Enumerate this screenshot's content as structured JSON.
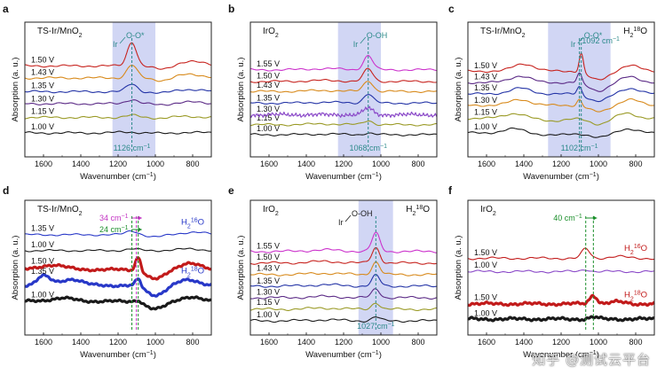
{
  "figure": {
    "watermark": "知乎 @测试云平台",
    "colors": {
      "black": "#1a1a1a",
      "olive": "#9a9a26",
      "purple": "#5b2a86",
      "blue": "#2333a6",
      "orange": "#d88a1c",
      "red": "#c7231e",
      "magenta": "#cc33cc",
      "violet": "#8a48c8",
      "dred": "#c21b1b",
      "dblue": "#2838c8",
      "band": "#c9cff2",
      "teal": "#2d8a8a",
      "green": "#1b8f2b",
      "pink": "#c332c3"
    }
  },
  "chart_data": [
    {
      "id": "a",
      "panel_label": "a",
      "type": "line",
      "title": "TS-Ir/MnO2",
      "xlabel": "Wavenumber (cm-1)",
      "ylabel": "Absorption (a. u.)",
      "xlim": [
        1700,
        700
      ],
      "x_ticks": [
        "1600",
        "1400",
        "1200",
        "1000",
        "800"
      ],
      "band": [
        1230,
        1000
      ],
      "vline": {
        "x": 1126,
        "color": "teal",
        "label": "1126 cm-1"
      },
      "annotation": {
        "text": "Ir—O-O*",
        "x": 1200,
        "color": "teal"
      },
      "series": [
        {
          "name": "1.00 V",
          "color": "black",
          "offset": 0.0,
          "feats": [
            [
              1150,
              0.05,
              80,
              0.6
            ],
            [
              960,
              -0.03,
              70,
              0.7
            ],
            [
              820,
              0.03,
              90,
              1.3
            ]
          ]
        },
        {
          "name": "1.15 V",
          "color": "olive",
          "offset": 0.9,
          "feats": [
            [
              1126,
              0.12,
              50,
              0.8
            ],
            [
              960,
              -0.05,
              70,
              0.9
            ],
            [
              840,
              0.06,
              110,
              1.7
            ]
          ]
        },
        {
          "name": "1.30 V",
          "color": "purple",
          "offset": 1.7,
          "feats": [
            [
              1126,
              0.25,
              45,
              1.0
            ],
            [
              960,
              -0.09,
              70,
              1.1
            ],
            [
              840,
              0.1,
              110,
              1.9
            ]
          ]
        },
        {
          "name": "1.35 V",
          "color": "blue",
          "offset": 2.4,
          "feats": [
            [
              1126,
              0.45,
              40,
              1.2
            ],
            [
              960,
              -0.12,
              70,
              1.3
            ],
            [
              840,
              0.14,
              110,
              2.1
            ]
          ]
        },
        {
          "name": "1.43 V",
          "color": "orange",
          "offset": 3.2,
          "feats": [
            [
              1126,
              0.75,
              38,
              1.4
            ],
            [
              960,
              -0.18,
              70,
              1.5
            ],
            [
              820,
              0.2,
              120,
              2.3
            ]
          ]
        },
        {
          "name": "1.50 V",
          "color": "red",
          "offset": 3.9,
          "feats": [
            [
              1126,
              1.4,
              35,
              1.6
            ],
            [
              960,
              -0.25,
              70,
              1.7
            ],
            [
              820,
              0.25,
              120,
              2.5
            ]
          ]
        }
      ]
    },
    {
      "id": "b",
      "panel_label": "b",
      "type": "line",
      "title": "IrO2",
      "xlabel": "Wavenumber (cm-1)",
      "ylabel": "Absorption (a. u.)",
      "xlim": [
        1700,
        700
      ],
      "x_ticks": [
        "1600",
        "1400",
        "1200",
        "1000",
        "800"
      ],
      "band": [
        1230,
        1000
      ],
      "vline": {
        "x": 1068,
        "color": "teal",
        "label": "1068 cm-1"
      },
      "annotation": {
        "text": "Ir—O-OH",
        "x": 1120,
        "color": "teal"
      },
      "series": [
        {
          "name": "1.00 V",
          "color": "black",
          "offset": 0.0,
          "feats": [
            [
              1068,
              0.1,
              35,
              0.4
            ],
            [
              1300,
              0.04,
              120,
              1.1
            ]
          ]
        },
        {
          "name": "1.15 V",
          "color": "olive",
          "offset": 0.6,
          "feats": [
            [
              1068,
              0.25,
              35,
              0.6
            ],
            [
              1300,
              0.05,
              120,
              1.3
            ]
          ]
        },
        {
          "name": "1.30 V",
          "color": "violet",
          "offset": 1.2,
          "noisy": true,
          "feats": [
            [
              1068,
              0.4,
              35,
              0.8
            ]
          ]
        },
        {
          "name": "1.35 V",
          "color": "blue",
          "offset": 1.9,
          "feats": [
            [
              1068,
              0.55,
              35,
              1.0
            ],
            [
              1300,
              0.05,
              120,
              1.7
            ]
          ]
        },
        {
          "name": "1.43 V",
          "color": "orange",
          "offset": 2.6,
          "feats": [
            [
              1068,
              0.65,
              35,
              1.2
            ],
            [
              1300,
              0.06,
              120,
              1.9
            ]
          ]
        },
        {
          "name": "1.50 V",
          "color": "red",
          "offset": 3.2,
          "feats": [
            [
              1068,
              0.75,
              35,
              1.4
            ],
            [
              1300,
              0.06,
              120,
              2.1
            ]
          ]
        },
        {
          "name": "1.55 V",
          "color": "magenta",
          "offset": 3.9,
          "feats": [
            [
              1068,
              0.85,
              35,
              1.6
            ],
            [
              1300,
              0.07,
              120,
              2.3
            ]
          ]
        }
      ]
    },
    {
      "id": "c",
      "panel_label": "c",
      "type": "line",
      "title": "TS-Ir/MnO2",
      "title_right": "H218O",
      "xlabel": "Wavenumber (cm-1)",
      "ylabel": "Absorption (a. u.)",
      "xlim": [
        1700,
        700
      ],
      "x_ticks": [
        "1600",
        "1400",
        "1200",
        "1000",
        "800"
      ],
      "band": [
        1270,
        935
      ],
      "vline": {
        "x": 1102,
        "color": "teal",
        "label": "1102 cm-1"
      },
      "vline2": {
        "x": 1092,
        "color": "teal",
        "label": "1092 cm-1"
      },
      "annotation": {
        "text": "Ir—O-O*",
        "x": 1120,
        "color": "teal"
      },
      "series": [
        {
          "name": "1.00 V",
          "color": "black",
          "offset": 0.0,
          "feats": [
            [
              1450,
              0.25,
              80,
              0.6
            ],
            [
              1250,
              -0.15,
              100,
              1.2
            ],
            [
              1000,
              -0.3,
              70,
              0.8
            ],
            [
              850,
              0.25,
              70,
              1.4
            ]
          ]
        },
        {
          "name": "1.15 V",
          "color": "olive",
          "offset": 0.9,
          "feats": [
            [
              1450,
              0.3,
              80,
              0.8
            ],
            [
              1250,
              -0.15,
              100,
              1.4
            ],
            [
              1000,
              -0.35,
              70,
              1.0
            ],
            [
              850,
              0.3,
              70,
              1.6
            ]
          ]
        },
        {
          "name": "1.30 V",
          "color": "orange",
          "offset": 1.7,
          "feats": [
            [
              1420,
              0.35,
              80,
              1.0
            ],
            [
              1102,
              0.4,
              18,
              0.3
            ],
            [
              1000,
              -0.4,
              70,
              1.2
            ],
            [
              830,
              0.35,
              70,
              1.8
            ]
          ]
        },
        {
          "name": "1.35 V",
          "color": "blue",
          "offset": 2.4,
          "feats": [
            [
              1420,
              0.35,
              80,
              1.2
            ],
            [
              1102,
              0.5,
              18,
              0.3
            ],
            [
              1000,
              -0.45,
              70,
              1.4
            ],
            [
              830,
              0.35,
              70,
              2.0
            ]
          ]
        },
        {
          "name": "1.43 V",
          "color": "purple",
          "offset": 3.1,
          "feats": [
            [
              1420,
              0.4,
              80,
              1.4
            ],
            [
              1102,
              0.6,
              18,
              0.3
            ],
            [
              1000,
              -0.5,
              70,
              1.6
            ],
            [
              830,
              0.35,
              70,
              2.2
            ]
          ]
        },
        {
          "name": "1.50 V",
          "color": "red",
          "offset": 3.8,
          "feats": [
            [
              1400,
              0.45,
              80,
              1.6
            ],
            [
              1092,
              1.2,
              16,
              0.3
            ],
            [
              1000,
              -0.55,
              70,
              1.8
            ],
            [
              830,
              0.35,
              70,
              2.4
            ]
          ]
        }
      ]
    },
    {
      "id": "d",
      "panel_label": "d",
      "type": "line",
      "title": "TS-Ir/MnO2",
      "xlabel": "Wavenumber (cm-1)",
      "ylabel": "Absorption (a. u.)",
      "xlim": [
        1700,
        700
      ],
      "x_ticks": [
        "1600",
        "1400",
        "1200",
        "1000",
        "800"
      ],
      "vlines": [
        {
          "x": 1126,
          "color": "green"
        },
        {
          "x": 1102,
          "color": "pink"
        },
        {
          "x": 1092,
          "color": "green"
        }
      ],
      "shift_labels": [
        {
          "text": "34 cm-1",
          "color": "pink",
          "row": 0
        },
        {
          "text": "24 cm-1",
          "color": "green",
          "row": 1
        }
      ],
      "iso_labels": [
        {
          "text": "H216O",
          "series": 1
        },
        {
          "text": "H218O",
          "series": 3
        }
      ],
      "series": [
        {
          "name": "1.00 V",
          "color": "black",
          "offset": 3.2,
          "feats": [
            [
              1126,
              0.1,
              50,
              0.3
            ],
            [
              820,
              0.1,
              100,
              1.0
            ]
          ]
        },
        {
          "name": "1.35 V",
          "color": "dblue",
          "offset": 4.2,
          "feats": [
            [
              1126,
              0.25,
              45,
              0.5
            ],
            [
              1000,
              -0.15,
              60,
              0.9
            ],
            [
              800,
              0.15,
              100,
              1.2
            ]
          ]
        },
        {
          "name": "1.00 V",
          "color": "black",
          "offset": 0.0,
          "bold": true,
          "feats": [
            [
              1500,
              0.2,
              90,
              0.6
            ],
            [
              1092,
              0.15,
              25,
              0.3
            ],
            [
              1000,
              -0.5,
              70,
              0.8
            ],
            [
              820,
              0.25,
              80,
              1.3
            ]
          ]
        },
        {
          "name": "1.35 V",
          "color": "dblue",
          "offset": 1.0,
          "bold": true,
          "feats": [
            [
              1600,
              0.6,
              50,
              0.4
            ],
            [
              1450,
              0.4,
              80,
              0.9
            ],
            [
              1092,
              0.5,
              20,
              0.3
            ],
            [
              1000,
              -0.6,
              70,
              1.0
            ],
            [
              820,
              0.35,
              80,
              1.5
            ]
          ]
        },
        {
          "name": "1.50 V",
          "color": "dred",
          "offset": 2.0,
          "bold": true,
          "feats": [
            [
              1550,
              0.3,
              90,
              0.7
            ],
            [
              1092,
              0.9,
              20,
              0.3
            ],
            [
              1000,
              -0.6,
              70,
              1.1
            ],
            [
              820,
              0.4,
              80,
              1.7
            ]
          ]
        }
      ]
    },
    {
      "id": "e",
      "panel_label": "e",
      "type": "line",
      "title": "IrO2",
      "title_right": "H218O",
      "xlabel": "Wavenumber (cm-1)",
      "ylabel": "Absorption (a. u.)",
      "xlim": [
        1700,
        700
      ],
      "x_ticks": [
        "1600",
        "1400",
        "1200",
        "1000",
        "800"
      ],
      "band": [
        1120,
        935
      ],
      "vline": {
        "x": 1027,
        "color": "teal",
        "label": "1027 cm-1"
      },
      "annotation": {
        "text": "Ir—O-OH",
        "x": 1200,
        "color": "black"
      },
      "series": [
        {
          "name": "1.00 V",
          "color": "black",
          "offset": 0.0,
          "feats": [
            [
              1027,
              0.2,
              30,
              0.4
            ],
            [
              1300,
              0.05,
              120,
              1.1
            ]
          ]
        },
        {
          "name": "1.15 V",
          "color": "olive",
          "offset": 0.6,
          "feats": [
            [
              1027,
              0.35,
              30,
              0.6
            ],
            [
              1300,
              0.06,
              120,
              1.3
            ]
          ]
        },
        {
          "name": "1.30 V",
          "color": "purple",
          "offset": 1.2,
          "feats": [
            [
              1027,
              0.45,
              30,
              0.8
            ],
            [
              1300,
              0.06,
              120,
              1.5
            ]
          ]
        },
        {
          "name": "1.35 V",
          "color": "blue",
          "offset": 1.8,
          "feats": [
            [
              1027,
              0.55,
              30,
              1.0
            ],
            [
              1300,
              0.07,
              120,
              1.7
            ]
          ]
        },
        {
          "name": "1.43 V",
          "color": "orange",
          "offset": 2.4,
          "feats": [
            [
              1027,
              0.65,
              30,
              1.2
            ],
            [
              1300,
              0.07,
              120,
              1.9
            ]
          ]
        },
        {
          "name": "1.50 V",
          "color": "red",
          "offset": 3.0,
          "feats": [
            [
              1027,
              0.8,
              30,
              1.4
            ],
            [
              1300,
              0.08,
              120,
              2.1
            ]
          ]
        },
        {
          "name": "1.55 V",
          "color": "magenta",
          "offset": 3.6,
          "feats": [
            [
              1027,
              0.95,
              30,
              1.6
            ],
            [
              1300,
              0.08,
              120,
              2.3
            ]
          ]
        }
      ]
    },
    {
      "id": "f",
      "panel_label": "f",
      "type": "line",
      "title": "IrO2",
      "xlabel": "Wavenumber (cm-1)",
      "ylabel": "Absorption (a. u.)",
      "xlim": [
        1700,
        700
      ],
      "x_ticks": [
        "1600",
        "1400",
        "1200",
        "1000",
        "800"
      ],
      "vlines": [
        {
          "x": 1068,
          "color": "green"
        },
        {
          "x": 1027,
          "color": "green"
        }
      ],
      "shift_labels": [
        {
          "text": "40 cm-1",
          "color": "green",
          "row": 0
        }
      ],
      "iso_labels": [
        {
          "text": "H216O",
          "series": 3
        },
        {
          "text": "H218O",
          "series": 1
        }
      ],
      "series": [
        {
          "name": "1.00 V",
          "color": "black",
          "offset": 0.0,
          "bold": true,
          "feats": [
            [
              1027,
              0.1,
              30,
              0.3
            ]
          ]
        },
        {
          "name": "1.50 V",
          "color": "dred",
          "offset": 0.8,
          "bold": true,
          "feats": [
            [
              1027,
              0.45,
              28,
              0.3
            ],
            [
              900,
              0.1,
              60,
              1.1
            ]
          ]
        },
        {
          "name": "1.00 V",
          "color": "violet",
          "offset": 2.5,
          "feats": [
            [
              1068,
              0.12,
              30,
              0.3
            ]
          ]
        },
        {
          "name": "1.50 V",
          "color": "dred",
          "offset": 3.2,
          "feats": [
            [
              1068,
              0.5,
              30,
              0.3
            ],
            [
              900,
              0.1,
              60,
              1.2
            ]
          ]
        }
      ]
    }
  ]
}
